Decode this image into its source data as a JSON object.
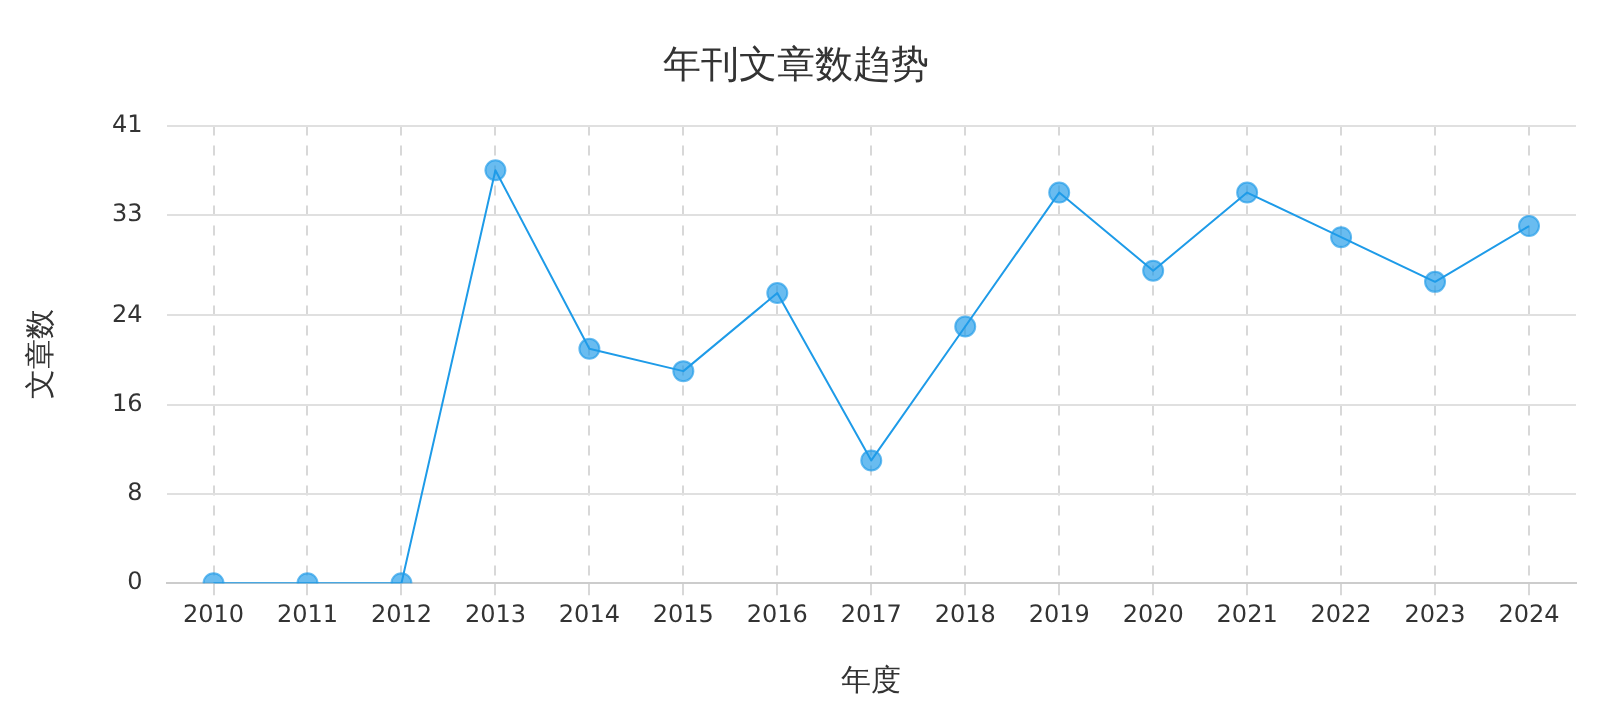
{
  "chart_data": {
    "type": "line",
    "title": "年刊文章数趋势",
    "xlabel": "年度",
    "ylabel": "文章数",
    "categories": [
      "2010",
      "2011",
      "2012",
      "2013",
      "2014",
      "2015",
      "2016",
      "2017",
      "2018",
      "2019",
      "2020",
      "2021",
      "2022",
      "2023",
      "2024"
    ],
    "series": [
      {
        "color": "#1e9be8",
        "values": [
          0,
          0,
          0,
          37,
          21,
          19,
          26,
          11,
          23,
          35,
          28,
          35,
          31,
          27,
          32
        ]
      }
    ],
    "ylim": [
      0,
      41
    ],
    "yticks": [
      0,
      8,
      16,
      24,
      33,
      41
    ],
    "grid": true,
    "marker": "circle",
    "legend": false
  }
}
